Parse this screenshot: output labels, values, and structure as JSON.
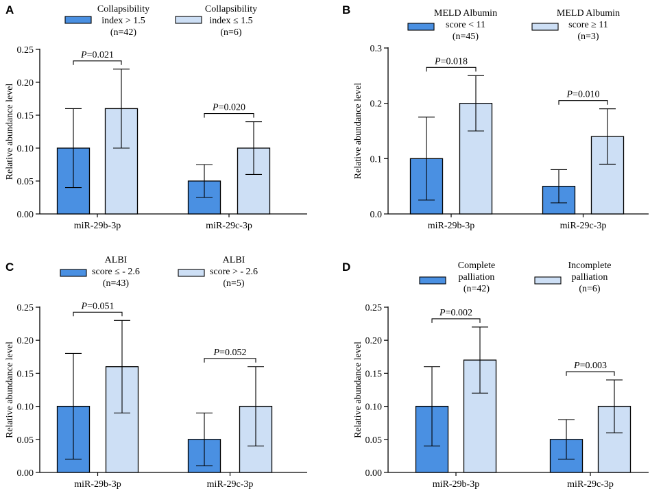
{
  "colors": {
    "group1": "#4a90e2",
    "group2": "#cddff5",
    "stroke": "#000000",
    "errorbar": "#000000"
  },
  "chart_data": [
    {
      "type": "bar",
      "panel": "A",
      "categories": [
        "miR-29b-3p",
        "miR-29c-3p"
      ],
      "ylabel": "Relative abundance level",
      "ylim": [
        0,
        0.25
      ],
      "yticks": [
        0.0,
        0.05,
        0.1,
        0.15,
        0.2,
        0.25
      ],
      "ytick_labels": [
        "0.00",
        "0.05",
        "0.10",
        "0.15",
        "0.20",
        "0.25"
      ],
      "series": [
        {
          "name": "Collapsibility index > 1.5 (n=42)",
          "legend_lines": [
            "Collapsibility",
            "index > 1.5",
            "(n=42)"
          ],
          "values": [
            0.1,
            0.05
          ],
          "err_low": [
            0.04,
            0.025
          ],
          "err_high": [
            0.16,
            0.075
          ]
        },
        {
          "name": "Collapsibility index ≤ 1.5 (n=6)",
          "legend_lines": [
            "Collapsibility",
            "index ≤ 1.5",
            "(n=6)"
          ],
          "values": [
            0.16,
            0.1
          ],
          "err_low": [
            0.1,
            0.06
          ],
          "err_high": [
            0.22,
            0.14
          ]
        }
      ],
      "significance": [
        {
          "category": 0,
          "p_prefix": "P",
          "p_value": "=0.021"
        },
        {
          "category": 1,
          "p_prefix": "P",
          "p_value": "=0.020"
        }
      ]
    },
    {
      "type": "bar",
      "panel": "B",
      "categories": [
        "miR-29b-3p",
        "miR-29c-3p"
      ],
      "ylabel": "Relative abundance level",
      "ylim": [
        0,
        0.3
      ],
      "yticks": [
        0.0,
        0.1,
        0.2,
        0.3
      ],
      "ytick_labels": [
        "0.0",
        "0.1",
        "0.2",
        "0.3"
      ],
      "series": [
        {
          "name": "MELD Albumin score < 11 (n=45)",
          "legend_lines": [
            "MELD Albumin",
            "score < 11",
            "(n=45)"
          ],
          "values": [
            0.1,
            0.05
          ],
          "err_low": [
            0.025,
            0.02
          ],
          "err_high": [
            0.175,
            0.08
          ]
        },
        {
          "name": "MELD Albumin score ≥ 11 (n=3)",
          "legend_lines": [
            "MELD Albumin",
            "score ≥ 11",
            "(n=3)"
          ],
          "values": [
            0.2,
            0.14
          ],
          "err_low": [
            0.15,
            0.09
          ],
          "err_high": [
            0.25,
            0.19
          ]
        }
      ],
      "significance": [
        {
          "category": 0,
          "p_prefix": "P",
          "p_value": "=0.018"
        },
        {
          "category": 1,
          "p_prefix": "P",
          "p_value": "=0.010"
        }
      ]
    },
    {
      "type": "bar",
      "panel": "C",
      "categories": [
        "miR-29b-3p",
        "miR-29c-3p"
      ],
      "ylabel": "Relative abundance level",
      "ylim": [
        0,
        0.25
      ],
      "yticks": [
        0.0,
        0.05,
        0.1,
        0.15,
        0.2,
        0.25
      ],
      "ytick_labels": [
        "0.00",
        "0.05",
        "0.10",
        "0.15",
        "0.20",
        "0.25"
      ],
      "series": [
        {
          "name": "ALBI score ≤ - 2.6 (n=43)",
          "legend_lines": [
            "ALBI",
            "score ≤ - 2.6",
            "(n=43)"
          ],
          "values": [
            0.1,
            0.05
          ],
          "err_low": [
            0.02,
            0.01
          ],
          "err_high": [
            0.18,
            0.09
          ]
        },
        {
          "name": "ALBI score > - 2.6 (n=5)",
          "legend_lines": [
            "ALBI",
            "score > - 2.6",
            "(n=5)"
          ],
          "values": [
            0.16,
            0.1
          ],
          "err_low": [
            0.09,
            0.04
          ],
          "err_high": [
            0.23,
            0.16
          ]
        }
      ],
      "significance": [
        {
          "category": 0,
          "p_prefix": "P",
          "p_value": "=0.051"
        },
        {
          "category": 1,
          "p_prefix": "P",
          "p_value": "=0.052"
        }
      ]
    },
    {
      "type": "bar",
      "panel": "D",
      "categories": [
        "miR-29b-3p",
        "miR-29c-3p"
      ],
      "ylabel": "Relative abundance level",
      "ylim": [
        0,
        0.25
      ],
      "yticks": [
        0.0,
        0.05,
        0.1,
        0.15,
        0.2,
        0.25
      ],
      "ytick_labels": [
        "0.00",
        "0.05",
        "0.10",
        "0.15",
        "0.20",
        "0.25"
      ],
      "series": [
        {
          "name": "Complete palliation (n=42)",
          "legend_lines": [
            "Complete",
            "palliation",
            "(n=42)"
          ],
          "values": [
            0.1,
            0.05
          ],
          "err_low": [
            0.04,
            0.02
          ],
          "err_high": [
            0.16,
            0.08
          ]
        },
        {
          "name": "Incomplete palliation (n=6)",
          "legend_lines": [
            "Incomplete",
            "palliation",
            "(n=6)"
          ],
          "values": [
            0.17,
            0.1
          ],
          "err_low": [
            0.12,
            0.06
          ],
          "err_high": [
            0.22,
            0.14
          ]
        }
      ],
      "significance": [
        {
          "category": 0,
          "p_prefix": "P",
          "p_value": "=0.002"
        },
        {
          "category": 1,
          "p_prefix": "P",
          "p_value": "=0.003"
        }
      ]
    }
  ]
}
